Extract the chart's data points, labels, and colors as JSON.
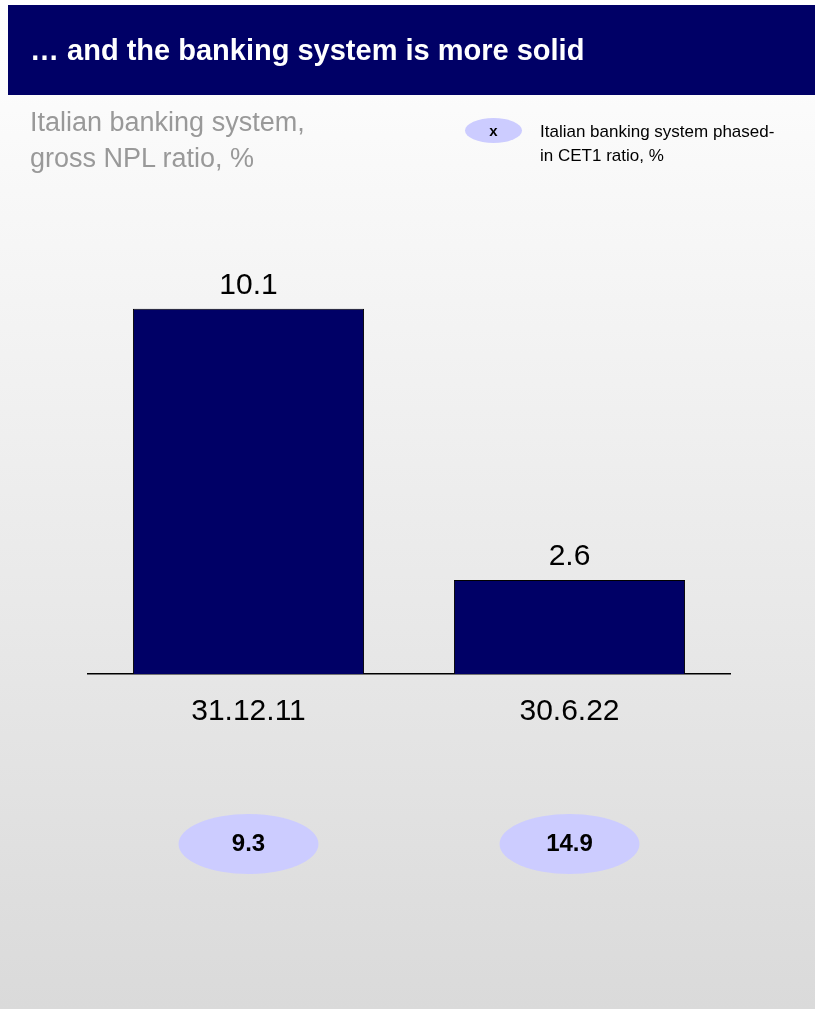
{
  "chart_data": {
    "type": "bar",
    "title": "… and the banking system is more solid",
    "subtitle": "Italian banking system, gross NPL ratio, %",
    "categories": [
      "31.12.11",
      "30.6.22"
    ],
    "values": [
      10.1,
      2.6
    ],
    "color": "#000066",
    "data_labels": true,
    "grid": false,
    "legend": false,
    "tick_labels": "x",
    "annotations": [
      "x",
      "Italian banking system phased-in CET1 ratio, %",
      "9.3",
      "14.9"
    ]
  }
}
